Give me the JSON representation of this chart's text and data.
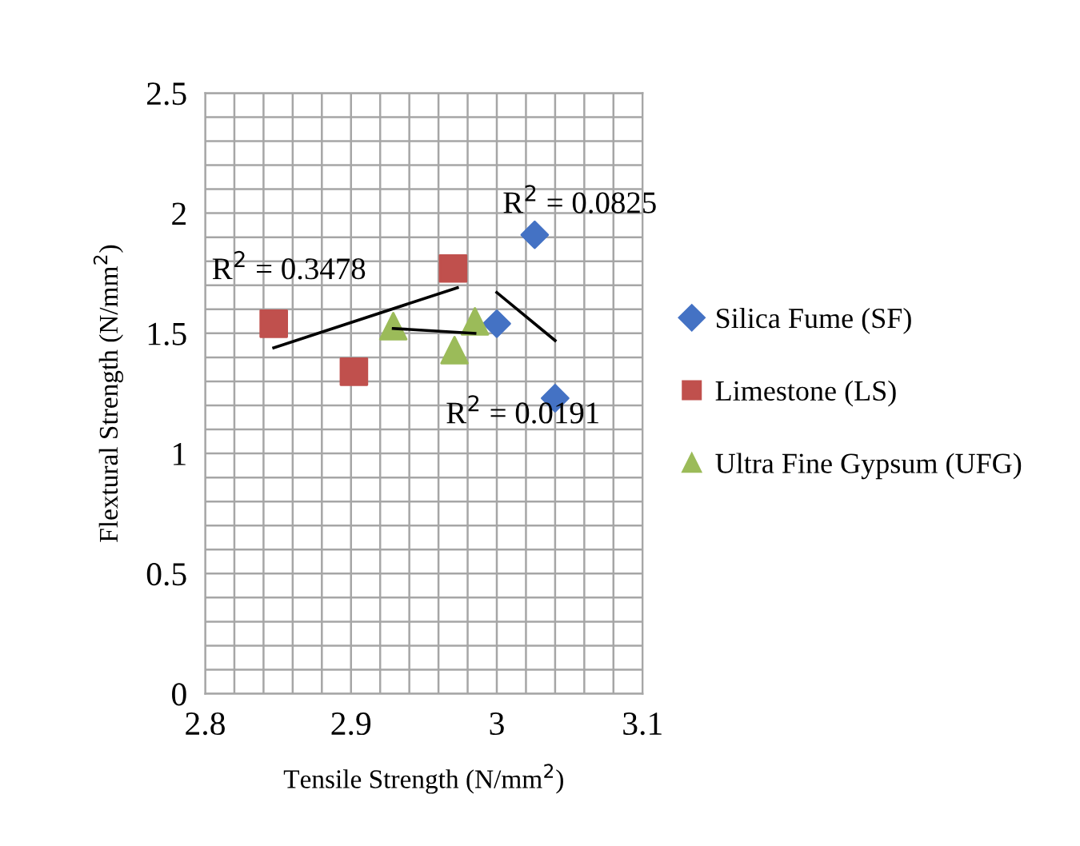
{
  "chart_data": {
    "type": "scatter",
    "xlabel": "Tensile Strength (N/mm$^{2}$)",
    "ylabel": "Flextural Strength (N/mm$^{2}$)",
    "xlim": [
      2.8,
      3.1
    ],
    "ylim": [
      0,
      2.5
    ],
    "xticks": [
      {
        "value": 2.8,
        "label": "2.8"
      },
      {
        "value": 2.82,
        "label": null
      },
      {
        "value": 2.84,
        "label": null
      },
      {
        "value": 2.86,
        "label": null
      },
      {
        "value": 2.88,
        "label": null
      },
      {
        "value": 2.9,
        "label": "2.9"
      },
      {
        "value": 2.92,
        "label": null
      },
      {
        "value": 2.94,
        "label": null
      },
      {
        "value": 2.96,
        "label": null
      },
      {
        "value": 2.98,
        "label": null
      },
      {
        "value": 3,
        "label": "3"
      },
      {
        "value": 3.02,
        "label": null
      },
      {
        "value": 3.04,
        "label": null
      },
      {
        "value": 3.06,
        "label": null
      },
      {
        "value": 3.08,
        "label": null
      },
      {
        "value": 3.1,
        "label": "3.1"
      }
    ],
    "yticks": [
      {
        "value": 0,
        "label": "0"
      },
      {
        "value": 0.1,
        "label": null
      },
      {
        "value": 0.2,
        "label": null
      },
      {
        "value": 0.3,
        "label": null
      },
      {
        "value": 0.4,
        "label": null
      },
      {
        "value": 0.5,
        "label": "0.5"
      },
      {
        "value": 0.6,
        "label": null
      },
      {
        "value": 0.7,
        "label": null
      },
      {
        "value": 0.8,
        "label": null
      },
      {
        "value": 0.9,
        "label": null
      },
      {
        "value": 1,
        "label": "1"
      },
      {
        "value": 1.1,
        "label": null
      },
      {
        "value": 1.2,
        "label": null
      },
      {
        "value": 1.3,
        "label": null
      },
      {
        "value": 1.4,
        "label": null
      },
      {
        "value": 1.5,
        "label": "1.5"
      },
      {
        "value": 1.6,
        "label": null
      },
      {
        "value": 1.7,
        "label": null
      },
      {
        "value": 1.8,
        "label": null
      },
      {
        "value": 1.9,
        "label": null
      },
      {
        "value": 2,
        "label": "2"
      },
      {
        "value": 2.1,
        "label": null
      },
      {
        "value": 2.2,
        "label": null
      },
      {
        "value": 2.3,
        "label": null
      },
      {
        "value": 2.4,
        "label": null
      },
      {
        "value": 2.5,
        "label": "2.5"
      }
    ],
    "grid": true,
    "legend": "right",
    "series": [
      {
        "name": "Silica Fume (SF)",
        "color": "#4472c4",
        "marker": "diamond",
        "x": [
          3.026,
          3.0,
          3.04
        ],
        "values": [
          1.91,
          1.54,
          1.23
        ]
      },
      {
        "name": "Limestone (LS)",
        "color": "#c0504d",
        "marker": "square",
        "x": [
          2.847,
          2.902,
          2.97
        ],
        "values": [
          1.54,
          1.34,
          1.77
        ]
      },
      {
        "name": "Ultra Fine Gypsum (UFG)",
        "color": "#9bbb59",
        "marker": "triangle",
        "x": [
          2.929,
          2.971,
          2.985
        ],
        "values": [
          1.53,
          1.43,
          1.55
        ]
      },
      {
        "type": "line",
        "color": "#000000",
        "marker": "none",
        "x": [
          3.0,
          3.04
        ],
        "values": [
          1.67,
          1.47
        ]
      },
      {
        "type": "line",
        "color": "#000000",
        "marker": "none",
        "x": [
          2.847,
          2.973
        ],
        "values": [
          1.44,
          1.69
        ]
      },
      {
        "type": "line",
        "color": "#000000",
        "marker": "none",
        "x": [
          2.929,
          2.985
        ],
        "values": [
          1.52,
          1.5
        ]
      }
    ],
    "annotations": [
      "R$^{2}$ = 0.0825",
      "R$^{2}$ = 0.3478",
      "R$^{2}$ = 0.0191"
    ]
  }
}
